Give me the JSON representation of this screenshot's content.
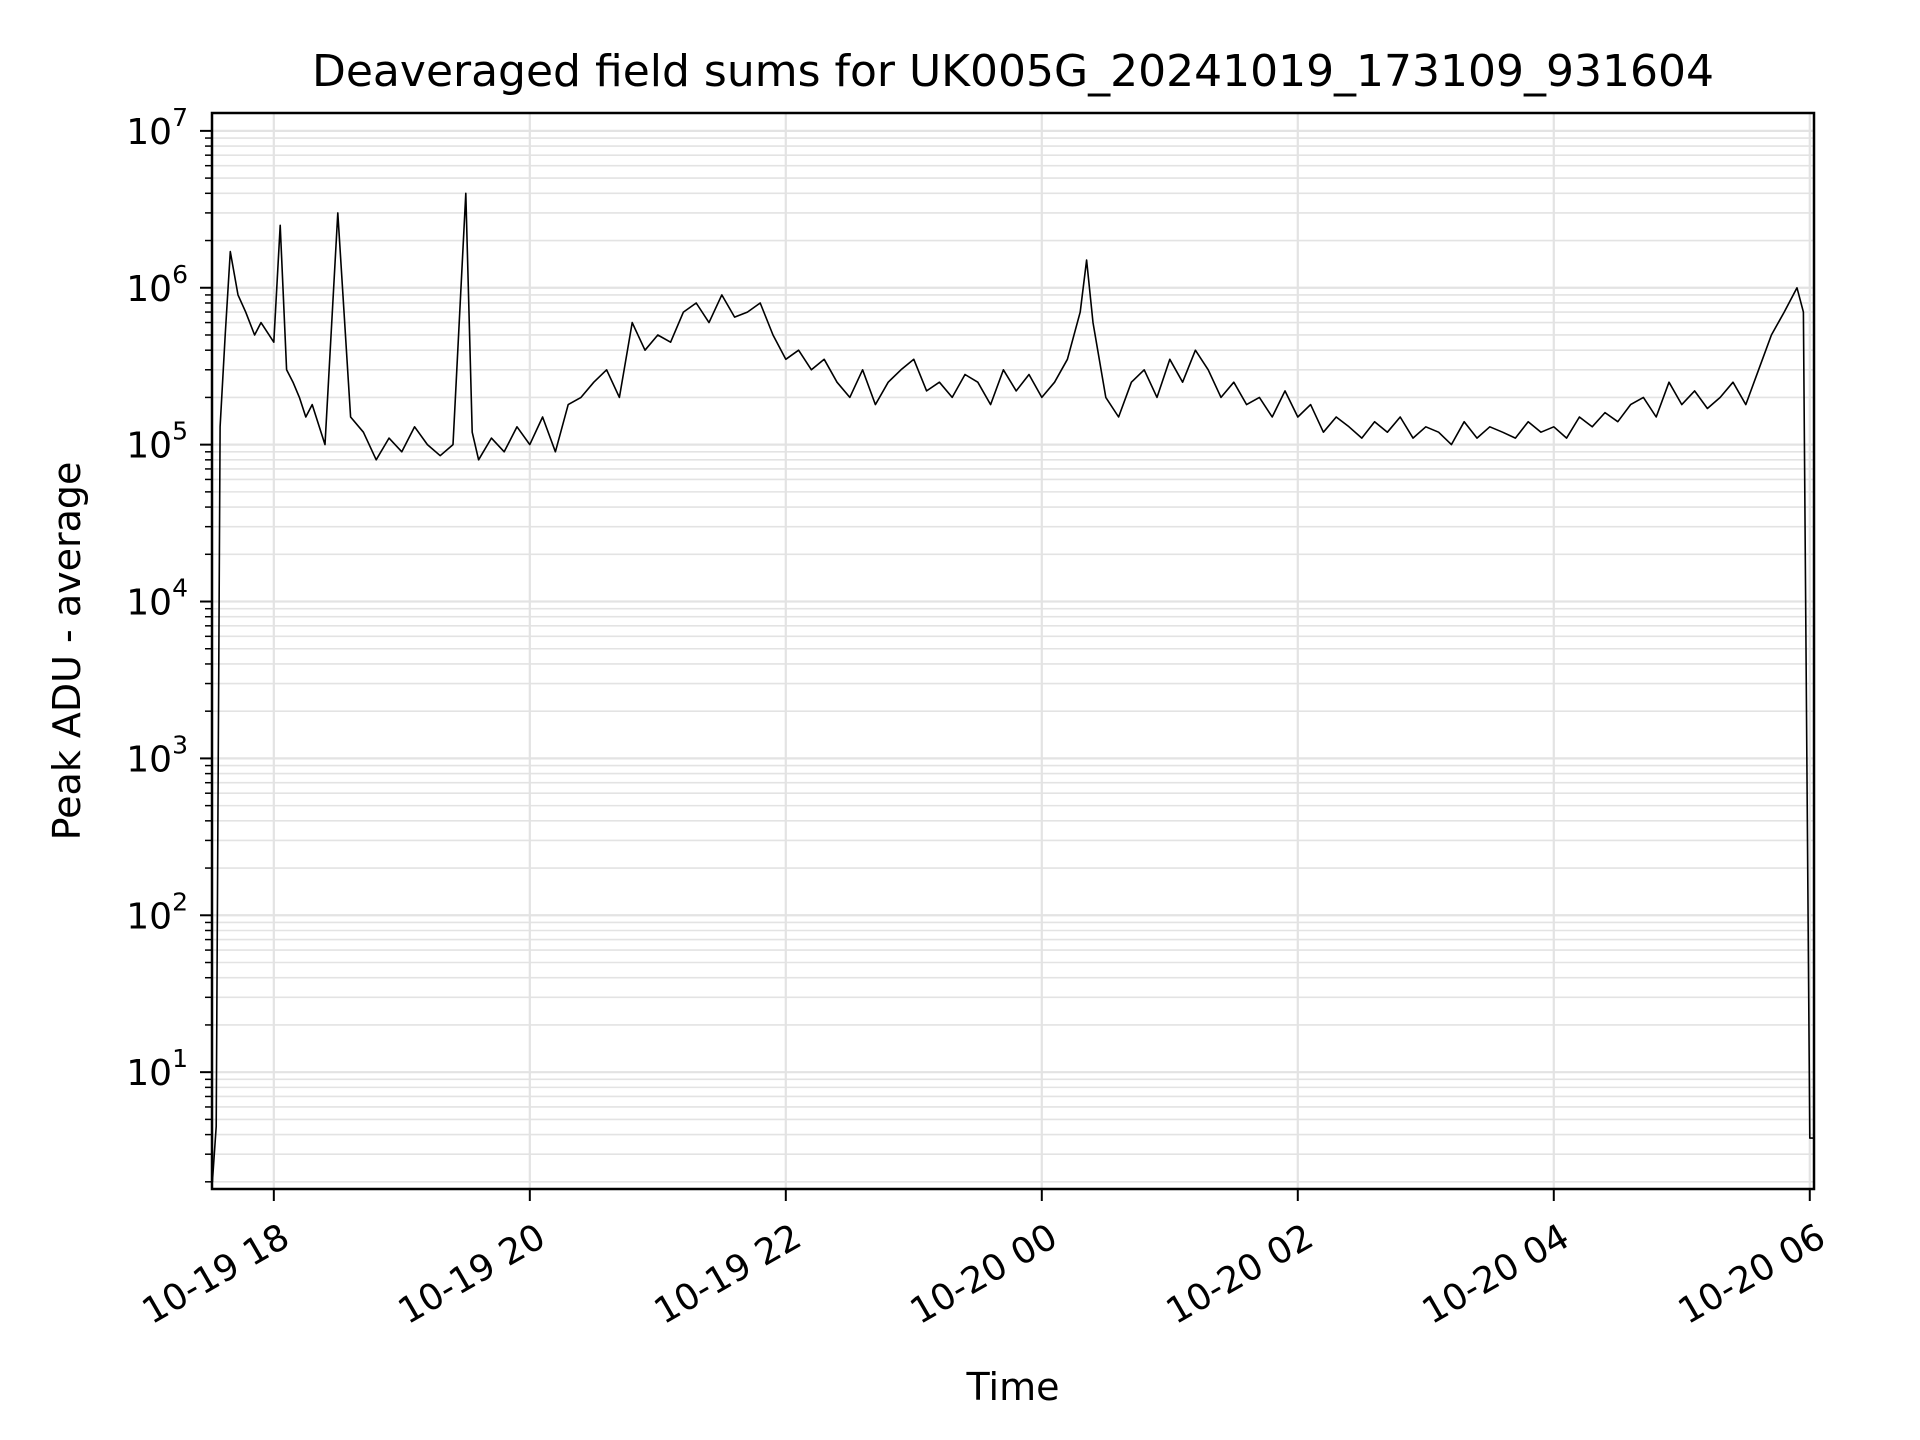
{
  "chart_data": {
    "type": "line",
    "title": "Deaveraged field sums for UK005G_20241019_173109_931604",
    "xlabel": "Time",
    "ylabel": "Peak ADU - average",
    "x_range": [
      "10-19 17:31",
      "10-20 06:02"
    ],
    "y_scale": "log",
    "ylim": [
      1.8,
      13000000
    ],
    "grid": true,
    "line_color": "#000000",
    "x_ticks": [
      {
        "hour": 18,
        "label": "10-19 18"
      },
      {
        "hour": 20,
        "label": "10-19 20"
      },
      {
        "hour": 22,
        "label": "10-19 22"
      },
      {
        "hour": 24,
        "label": "10-20 00"
      },
      {
        "hour": 26,
        "label": "10-20 02"
      },
      {
        "hour": 28,
        "label": "10-20 04"
      },
      {
        "hour": 30,
        "label": "10-20 06"
      }
    ],
    "y_ticks": [
      {
        "value": 10,
        "base": "10",
        "exp": "1"
      },
      {
        "value": 100,
        "base": "10",
        "exp": "2"
      },
      {
        "value": 1000,
        "base": "10",
        "exp": "3"
      },
      {
        "value": 10000,
        "base": "10",
        "exp": "4"
      },
      {
        "value": 100000,
        "base": "10",
        "exp": "5"
      },
      {
        "value": 1000000,
        "base": "10",
        "exp": "6"
      },
      {
        "value": 10000000,
        "base": "10",
        "exp": "7"
      }
    ],
    "series": [
      {
        "x_hours": [
          17.52,
          17.55,
          17.58,
          17.62,
          17.66,
          17.72,
          17.78,
          17.85,
          17.9,
          18.0,
          18.05,
          18.1,
          18.15,
          18.2,
          18.25,
          18.3,
          18.4,
          18.5,
          18.6,
          18.7,
          18.8,
          18.9,
          19.0,
          19.1,
          19.2,
          19.3,
          19.4,
          19.5,
          19.55,
          19.6,
          19.7,
          19.8,
          19.9,
          20.0,
          20.1,
          20.2,
          20.3,
          20.4,
          20.5,
          20.6,
          20.7,
          20.8,
          20.9,
          21.0,
          21.1,
          21.2,
          21.3,
          21.4,
          21.5,
          21.6,
          21.7,
          21.8,
          21.9,
          22.0,
          22.1,
          22.2,
          22.3,
          22.4,
          22.5,
          22.6,
          22.7,
          22.8,
          22.9,
          23.0,
          23.1,
          23.2,
          23.3,
          23.4,
          23.5,
          23.6,
          23.7,
          23.8,
          23.9,
          24.0,
          24.1,
          24.2,
          24.3,
          24.35,
          24.4,
          24.5,
          24.6,
          24.7,
          24.8,
          24.9,
          25.0,
          25.1,
          25.2,
          25.3,
          25.4,
          25.5,
          25.6,
          25.7,
          25.8,
          25.9,
          26.0,
          26.1,
          26.2,
          26.3,
          26.4,
          26.5,
          26.6,
          26.7,
          26.8,
          26.9,
          27.0,
          27.1,
          27.2,
          27.3,
          27.4,
          27.5,
          27.6,
          27.7,
          27.8,
          27.9,
          28.0,
          28.1,
          28.2,
          28.3,
          28.4,
          28.5,
          28.6,
          28.7,
          28.8,
          28.9,
          29.0,
          29.1,
          29.2,
          29.3,
          29.4,
          29.5,
          29.6,
          29.7,
          29.8,
          29.9,
          29.95,
          30.0,
          30.02,
          30.04
        ],
        "values": [
          2.0,
          4.5,
          130000,
          500000,
          1700000,
          900000,
          700000,
          500000,
          600000,
          450000,
          2500000,
          300000,
          250000,
          200000,
          150000,
          180000,
          100000,
          3000000,
          150000,
          120000,
          80000,
          110000,
          90000,
          130000,
          100000,
          85000,
          100000,
          4000000,
          120000,
          80000,
          110000,
          90000,
          130000,
          100000,
          150000,
          90000,
          180000,
          200000,
          250000,
          300000,
          200000,
          600000,
          400000,
          500000,
          450000,
          700000,
          800000,
          600000,
          900000,
          650000,
          700000,
          800000,
          500000,
          350000,
          400000,
          300000,
          350000,
          250000,
          200000,
          300000,
          180000,
          250000,
          300000,
          350000,
          220000,
          250000,
          200000,
          280000,
          250000,
          180000,
          300000,
          220000,
          280000,
          200000,
          250000,
          350000,
          700000,
          1500000,
          600000,
          200000,
          150000,
          250000,
          300000,
          200000,
          350000,
          250000,
          400000,
          300000,
          200000,
          250000,
          180000,
          200000,
          150000,
          220000,
          150000,
          180000,
          120000,
          150000,
          130000,
          110000,
          140000,
          120000,
          150000,
          110000,
          130000,
          120000,
          100000,
          140000,
          110000,
          130000,
          120000,
          110000,
          140000,
          120000,
          130000,
          110000,
          150000,
          130000,
          160000,
          140000,
          180000,
          200000,
          150000,
          250000,
          180000,
          220000,
          170000,
          200000,
          250000,
          180000,
          300000,
          500000,
          700000,
          1000000,
          700000,
          3.8,
          3.8,
          3.8
        ]
      }
    ]
  }
}
